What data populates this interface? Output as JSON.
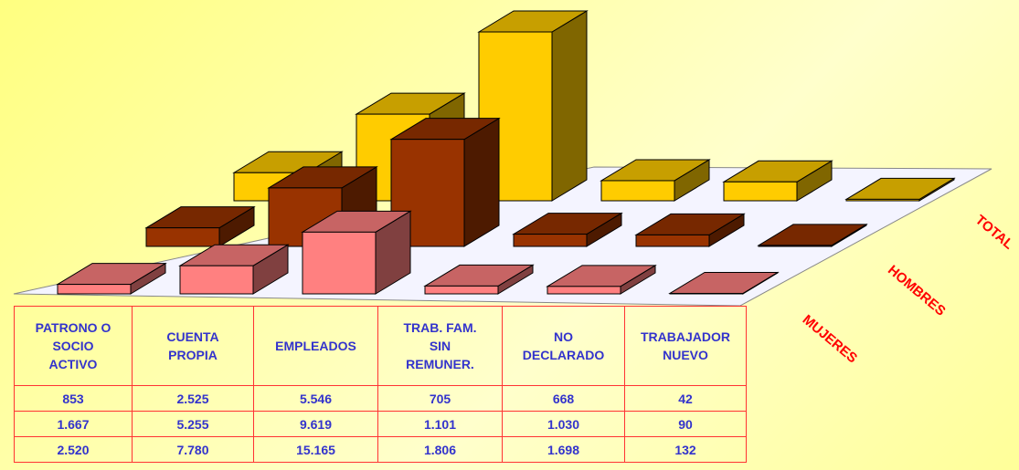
{
  "chart_data": {
    "type": "bar3d",
    "categories": [
      "PATRONO O SOCIO ACTIVO",
      "CUENTA PROPIA",
      "EMPLEADOS",
      "TRAB. FAM. SIN REMUNER.",
      "NO DECLARADO",
      "TRABAJADOR NUEVO"
    ],
    "series": [
      {
        "name": "MUJERES",
        "color": "#ff8080",
        "values": [
          853,
          2525,
          5546,
          705,
          668,
          42
        ],
        "value_labels": [
          "853",
          "2.525",
          "5.546",
          "705",
          "668",
          "42"
        ]
      },
      {
        "name": "HOMBRES",
        "color": "#993300",
        "values": [
          1667,
          5255,
          9619,
          1101,
          1030,
          90
        ],
        "value_labels": [
          "1.667",
          "5.255",
          "9.619",
          "1.101",
          "1.030",
          "90"
        ]
      },
      {
        "name": "TOTAL",
        "color": "#ffcc00",
        "values": [
          2520,
          7780,
          15165,
          1806,
          1698,
          132
        ],
        "value_labels": [
          "2.520",
          "7.780",
          "15.165",
          "1.806",
          "1.698",
          "132"
        ]
      }
    ]
  }
}
